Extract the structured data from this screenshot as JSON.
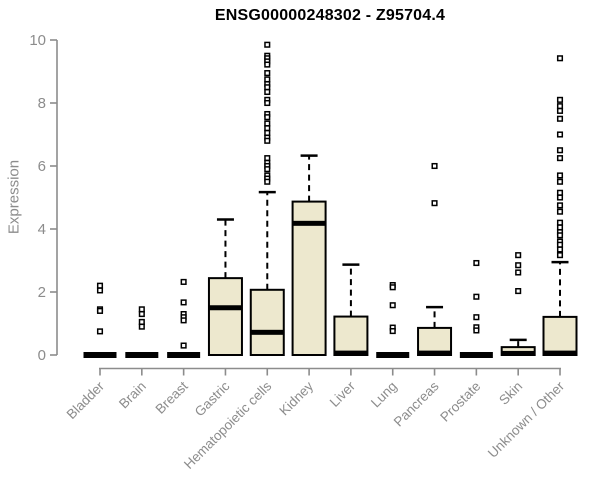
{
  "chart_data": {
    "type": "boxplot",
    "title": "ENSG00000248302 - Z95704.4",
    "ylabel": "Expression",
    "xlabel": "",
    "ylim": [
      0,
      10
    ],
    "yticks": [
      0,
      2,
      4,
      6,
      8,
      10
    ],
    "grid": false,
    "legend": "none",
    "whisker_style": "dashed",
    "outlier_marker": "open-square",
    "colors": {
      "box_fill": "#EDE8CE",
      "box_stroke": "#000000",
      "median": "#000000",
      "axis": "#8C8C8C",
      "tick_label": "#8C8C8C",
      "title": "#000000",
      "background": "#FFFFFF"
    },
    "categories": [
      "Bladder",
      "Brain",
      "Breast",
      "Gastric",
      "Hematopoietic cells",
      "Kidney",
      "Liver",
      "Lung",
      "Pancreas",
      "Prostate",
      "Skin",
      "Unknown / Other"
    ],
    "boxes": [
      {
        "category": "Bladder",
        "collapsed": true,
        "q1": 0,
        "median": 0,
        "q3": 0,
        "whisker_high": 0,
        "outliers": [
          2.2,
          2.05,
          1.45,
          1.4,
          0.75
        ]
      },
      {
        "category": "Brain",
        "collapsed": true,
        "q1": 0,
        "median": 0,
        "q3": 0,
        "whisker_high": 0,
        "outliers": [
          1.45,
          1.3,
          1.05,
          0.9
        ]
      },
      {
        "category": "Breast",
        "collapsed": true,
        "q1": 0,
        "median": 0,
        "q3": 0,
        "whisker_high": 0,
        "outliers": [
          2.32,
          1.67,
          1.3,
          1.2,
          1.1,
          0.3
        ]
      },
      {
        "category": "Gastric",
        "collapsed": false,
        "q1": 0,
        "median": 1.5,
        "q3": 2.44,
        "whisker_high": 4.3,
        "outliers": []
      },
      {
        "category": "Hematopoietic cells",
        "collapsed": false,
        "q1": 0,
        "median": 0.72,
        "q3": 2.07,
        "whisker_high": 5.17,
        "outliers": [
          9.85,
          9.5,
          9.42,
          9.32,
          9.22,
          8.95,
          8.75,
          8.6,
          8.5,
          8.35,
          8.1,
          8.0,
          7.65,
          7.55,
          7.35,
          7.2,
          7.05,
          6.9,
          6.8,
          6.25,
          6.1,
          6.0,
          5.9,
          5.7,
          5.6,
          5.5
        ]
      },
      {
        "category": "Kidney",
        "collapsed": false,
        "q1": 0,
        "median": 4.18,
        "q3": 4.87,
        "whisker_high": 6.33,
        "outliers": []
      },
      {
        "category": "Liver",
        "collapsed": false,
        "q1": 0,
        "median": 0.06,
        "q3": 1.22,
        "whisker_high": 2.87,
        "outliers": []
      },
      {
        "category": "Lung",
        "collapsed": true,
        "q1": 0,
        "median": 0,
        "q3": 0,
        "whisker_high": 0,
        "outliers": [
          2.22,
          2.15,
          1.58,
          0.87,
          0.76
        ]
      },
      {
        "category": "Pancreas",
        "collapsed": false,
        "q1": 0,
        "median": 0.06,
        "q3": 0.86,
        "whisker_high": 1.52,
        "outliers": [
          6.0,
          4.82
        ]
      },
      {
        "category": "Prostate",
        "collapsed": true,
        "q1": 0,
        "median": 0,
        "q3": 0,
        "whisker_high": 0,
        "outliers": [
          2.92,
          1.85,
          1.2,
          0.88,
          0.78
        ]
      },
      {
        "category": "Skin",
        "collapsed": false,
        "q1": 0,
        "median": 0.05,
        "q3": 0.25,
        "whisker_high": 0.48,
        "outliers": [
          3.17,
          2.85,
          2.62,
          2.03
        ]
      },
      {
        "category": "Unknown / Other",
        "collapsed": false,
        "q1": 0,
        "median": 0.06,
        "q3": 1.21,
        "whisker_high": 2.95,
        "outliers": [
          9.42,
          8.1,
          7.9,
          7.75,
          7.5,
          7.0,
          6.5,
          6.25,
          5.7,
          5.5,
          5.15,
          5.0,
          4.75,
          4.55,
          4.2,
          4.05,
          3.9,
          3.8,
          3.6,
          3.5,
          3.35,
          3.17
        ]
      }
    ]
  }
}
